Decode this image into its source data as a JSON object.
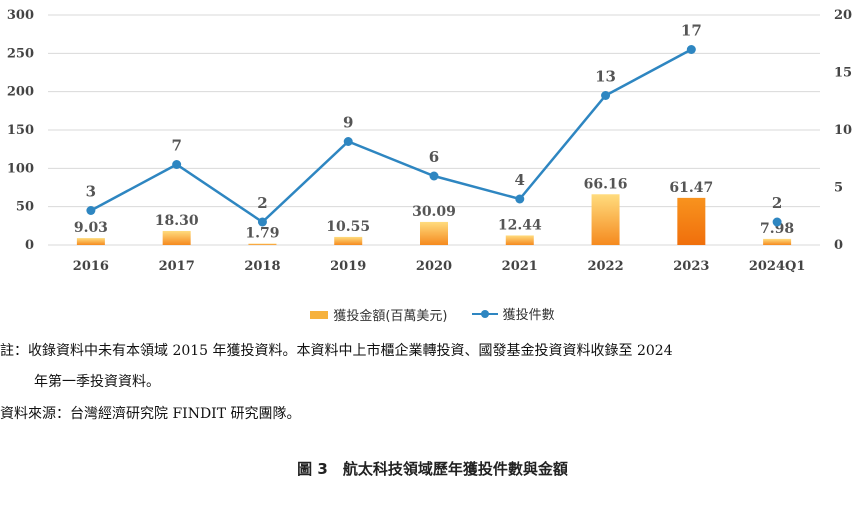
{
  "chart_data": {
    "type": "bar+line",
    "categories": [
      "2016",
      "2017",
      "2018",
      "2019",
      "2020",
      "2021",
      "2022",
      "2023",
      "2024Q1"
    ],
    "series": [
      {
        "name": "獲投金額(百萬美元)",
        "kind": "bar",
        "axis": "left",
        "values": [
          9.03,
          18.3,
          1.79,
          10.55,
          30.09,
          12.44,
          66.16,
          61.47,
          7.98
        ],
        "labels": [
          "9.03",
          "18.30",
          "1.79",
          "10.55",
          "30.09",
          "12.44",
          "66.16",
          "61.47",
          "7.98"
        ]
      },
      {
        "name": "獲投件數",
        "kind": "line",
        "axis": "right",
        "values": [
          3,
          7,
          2,
          9,
          6,
          4,
          13,
          17,
          2
        ],
        "labels": [
          "3",
          "7",
          "2",
          "9",
          "6",
          "4",
          "13",
          "17",
          "2"
        ]
      }
    ],
    "ylim_left": [
      0,
      300
    ],
    "yticks_left": [
      "0",
      "50",
      "100",
      "150",
      "200",
      "250",
      "300"
    ],
    "ylim_right": [
      0,
      20
    ],
    "yticks_right": [
      "0",
      "5",
      "10",
      "15",
      "20"
    ],
    "grid": true,
    "legend_position": "bottom",
    "colors": {
      "bar_top": "#ffd978",
      "bar_bottom": "#f58a1f",
      "bar_dark": "#f07a12",
      "line": "#2e86c1",
      "grid": "#d9d9d9"
    }
  },
  "notes": {
    "note_line1": "註：收錄資料中未有本領域 2015 年獲投資料。本資料中上市櫃企業轉投資、國發基金投資資料收錄至 2024",
    "note_line2": "年第一季投資資料。",
    "source": "資料來源：台灣經濟研究院 FINDIT 研究團隊。"
  },
  "caption": "圖 3　航太科技領域歷年獲投件數與金額"
}
